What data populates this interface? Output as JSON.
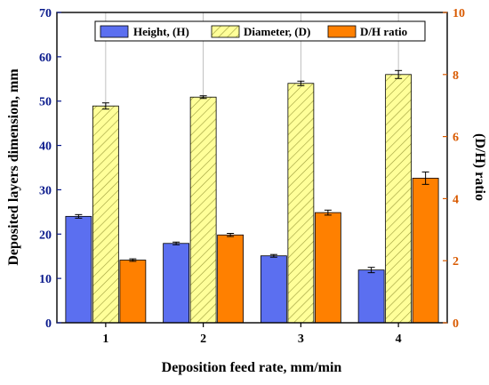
{
  "chart_data": {
    "type": "bar",
    "xlabel": "Deposition feed rate, mm/min",
    "ylabel": "Deposited layers dimension, mm",
    "y2label": "(D/H) ratio",
    "categories": [
      "1",
      "2",
      "3",
      "4"
    ],
    "ylim": [
      0,
      70
    ],
    "yticks": [
      0,
      10,
      20,
      30,
      40,
      50,
      60,
      70
    ],
    "y2lim": [
      0,
      10
    ],
    "y2ticks": [
      0,
      2,
      4,
      6,
      8,
      10
    ],
    "legend_position": "top-right",
    "series": [
      {
        "name": "Height, (H)",
        "axis": "left",
        "color": "#5b6ff0",
        "pattern": "solid",
        "values": [
          24.0,
          17.9,
          15.1,
          11.9
        ],
        "errors": [
          0.4,
          0.3,
          0.3,
          0.6
        ]
      },
      {
        "name": "Diameter, (D)",
        "axis": "left",
        "color": "#ffff99",
        "pattern": "diagonal-hatch",
        "values": [
          48.9,
          50.9,
          54.0,
          56.0
        ],
        "errors": [
          0.7,
          0.3,
          0.5,
          0.9
        ]
      },
      {
        "name": "D/H ratio",
        "axis": "right",
        "color": "#ff8000",
        "pattern": "solid",
        "values": [
          2.02,
          2.83,
          3.55,
          4.66
        ],
        "errors": [
          0.04,
          0.05,
          0.08,
          0.2
        ]
      }
    ],
    "colors": {
      "left_axis": "#0a1a8c",
      "right_axis": "#d95a00",
      "error_bar": "#000000"
    }
  }
}
